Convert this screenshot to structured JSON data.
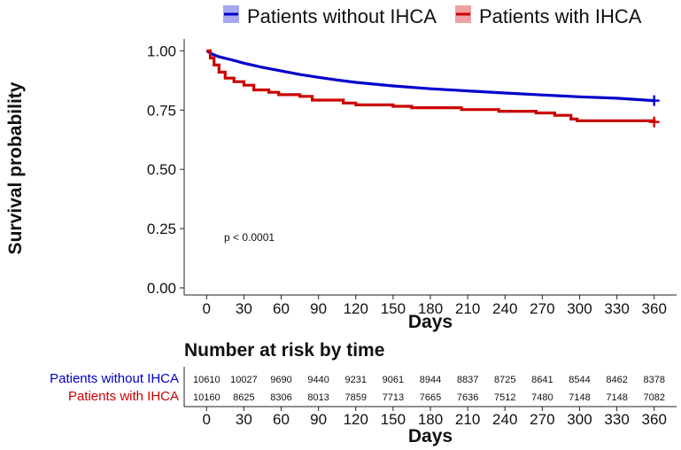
{
  "chart_data": [
    {
      "type": "line",
      "subtype": "kaplan-meier",
      "ylabel": "Survival probability",
      "xlabel": "Days",
      "x_ticks": [
        0,
        30,
        60,
        90,
        120,
        150,
        180,
        210,
        240,
        270,
        300,
        330,
        360
      ],
      "y_ticks": [
        0.0,
        0.25,
        0.5,
        0.75,
        1.0
      ],
      "y_tick_labels": [
        "0.00",
        "0.25",
        "0.50",
        "0.75",
        "1.00"
      ],
      "xlim": [
        -18,
        378
      ],
      "ylim": [
        -0.03,
        1.05
      ],
      "annotation": "p < 0.0001",
      "legend_position": "top",
      "series": [
        {
          "name": "Patients without IHCA",
          "color": "#0000cc",
          "fill_color": "#a8a8ef",
          "x": [
            0,
            5,
            10,
            20,
            30,
            45,
            60,
            75,
            90,
            105,
            120,
            150,
            180,
            210,
            240,
            270,
            300,
            330,
            360
          ],
          "values": [
            1.0,
            0.985,
            0.975,
            0.962,
            0.948,
            0.93,
            0.915,
            0.9,
            0.888,
            0.877,
            0.867,
            0.852,
            0.84,
            0.831,
            0.822,
            0.814,
            0.806,
            0.8,
            0.79
          ]
        },
        {
          "name": "Patients with IHCA",
          "color": "#cc0000",
          "fill_color": "#f0a0a0",
          "steps": [
            [
              0,
              1.0
            ],
            [
              3,
              0.97
            ],
            [
              6,
              0.94
            ],
            [
              10,
              0.91
            ],
            [
              15,
              0.885
            ],
            [
              22,
              0.87
            ],
            [
              30,
              0.855
            ],
            [
              38,
              0.835
            ],
            [
              50,
              0.825
            ],
            [
              58,
              0.815
            ],
            [
              75,
              0.808
            ],
            [
              85,
              0.792
            ],
            [
              110,
              0.78
            ],
            [
              120,
              0.772
            ],
            [
              150,
              0.766
            ],
            [
              165,
              0.76
            ],
            [
              205,
              0.752
            ],
            [
              235,
              0.745
            ],
            [
              265,
              0.738
            ],
            [
              280,
              0.728
            ],
            [
              293,
              0.712
            ],
            [
              298,
              0.705
            ],
            [
              360,
              0.7
            ]
          ]
        }
      ]
    },
    {
      "type": "table",
      "title": "Number at risk by time",
      "xlabel": "Days",
      "x_ticks": [
        0,
        30,
        60,
        90,
        120,
        150,
        180,
        210,
        240,
        270,
        300,
        330,
        360
      ],
      "rows": [
        {
          "name": "Patients without IHCA",
          "color": "#0000cc",
          "values": [
            10610,
            10027,
            9690,
            9440,
            9231,
            9061,
            8944,
            8837,
            8725,
            8641,
            8544,
            8462,
            8378
          ]
        },
        {
          "name": "Patients with IHCA",
          "color": "#cc0000",
          "values": [
            10160,
            8625,
            8306,
            8013,
            7859,
            7713,
            7665,
            7636,
            7512,
            7480,
            7148,
            7148,
            7082
          ]
        }
      ]
    }
  ]
}
